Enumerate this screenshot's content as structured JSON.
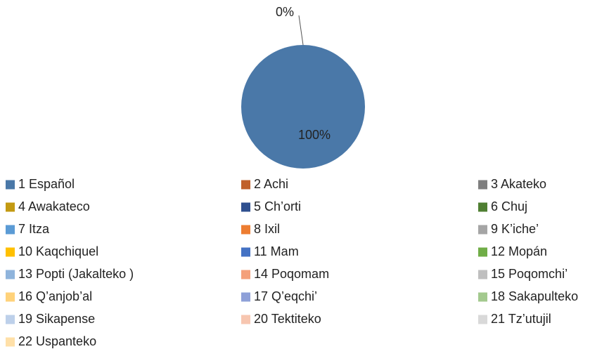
{
  "chart_data": {
    "type": "pie",
    "categories": [
      "1 Español",
      "2 Achi",
      "3 Akateko",
      "4 Awakateco",
      "5 Ch’orti",
      "6 Chuj",
      "7 Itza",
      "8 Ixil",
      "9 K’iche’",
      "10 Kaqchiquel",
      "11 Mam",
      "12 Mopán",
      "13 Popti (Jakalteko )",
      "14 Poqomam",
      "15 Poqomchi’",
      "16 Q’anjob’al",
      "17 Q’eqchi’",
      "18 Sakapulteko",
      "19 Sikapense",
      "20 Tektiteko",
      "21 Tz’utujil",
      "22 Uspanteko"
    ],
    "values": [
      100,
      0,
      0,
      0,
      0,
      0,
      0,
      0,
      0,
      0,
      0,
      0,
      0,
      0,
      0,
      0,
      0,
      0,
      0,
      0,
      0,
      0
    ],
    "value_labels": [
      "100%",
      "0%",
      null,
      null,
      null,
      null,
      null,
      null,
      null,
      null,
      null,
      null,
      null,
      null,
      null,
      null,
      null,
      null,
      null,
      null,
      null,
      null
    ],
    "colors": [
      "#4a78a8",
      "#c0602a",
      "#7f7f7f",
      "#c39a12",
      "#2e4f8f",
      "#4f7f32",
      "#5b9bd5",
      "#ed7d31",
      "#a5a5a5",
      "#ffc000",
      "#4472c4",
      "#70ad47",
      "#8fb4dc",
      "#f4a07a",
      "#bfbfbf",
      "#ffd27a",
      "#8ea0d8",
      "#a3c98e",
      "#bdd0ea",
      "#f7c6b0",
      "#d9d9d9",
      "#ffe0a8"
    ],
    "legend": "bottom"
  }
}
